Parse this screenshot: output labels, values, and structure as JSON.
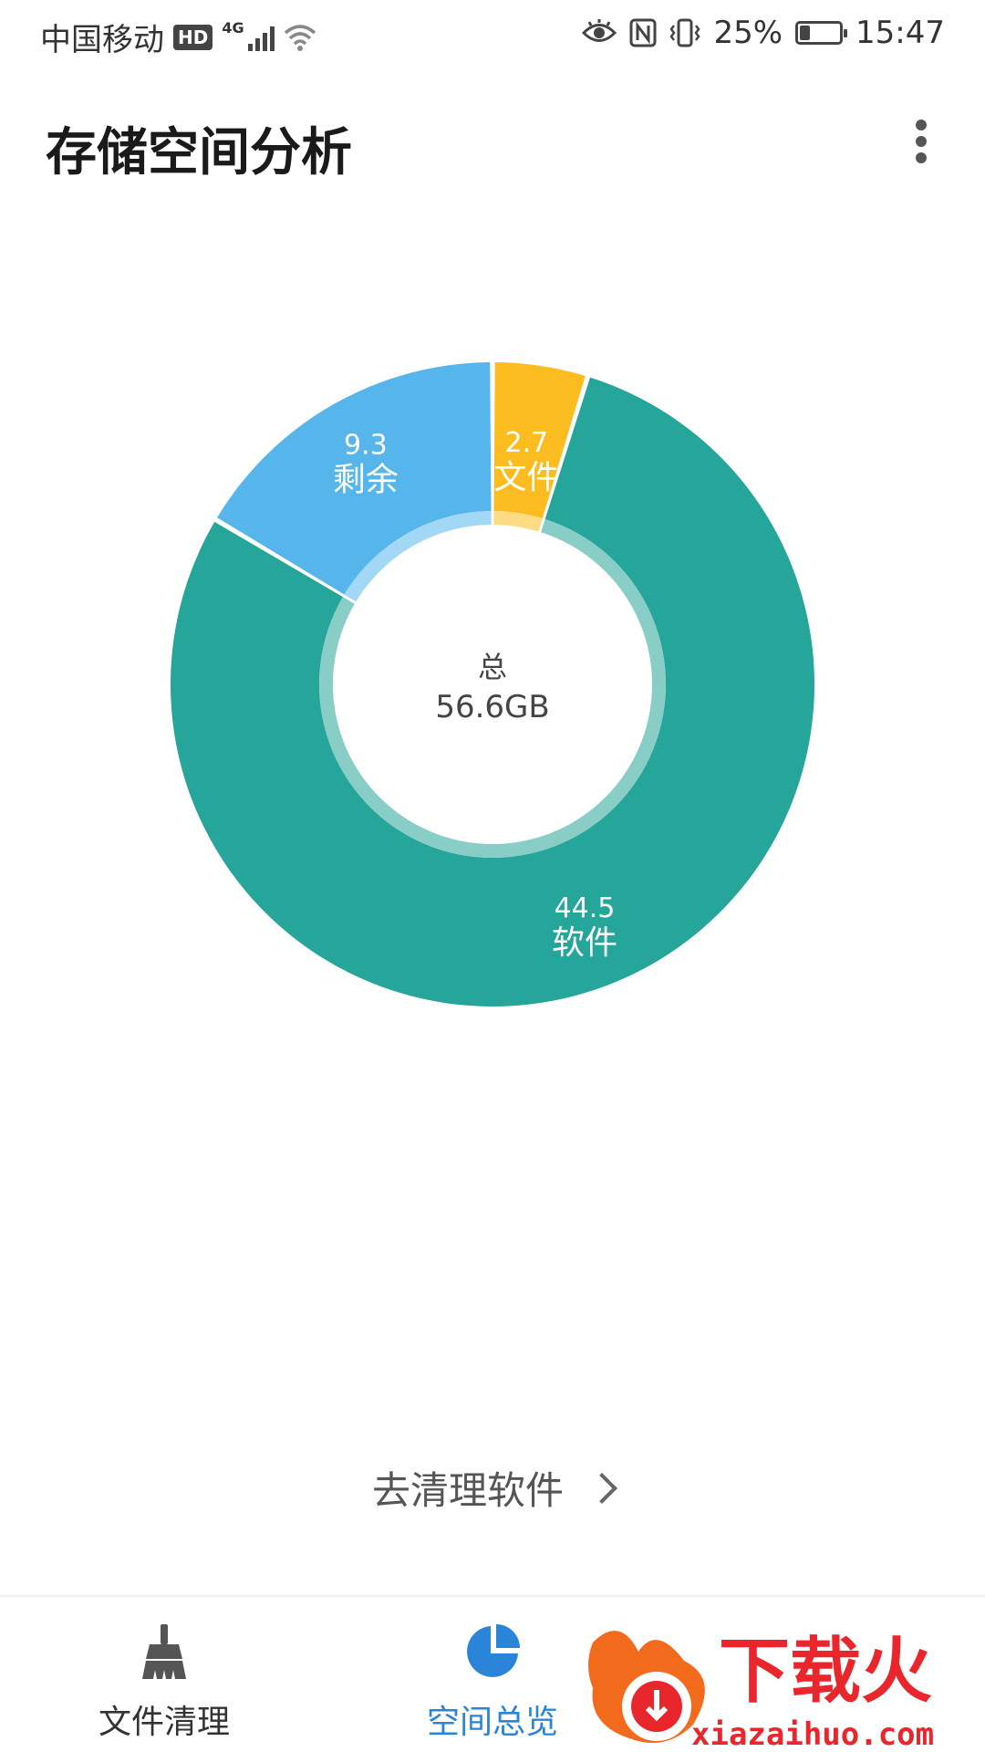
{
  "status_bar": {
    "carrier": "中国移动",
    "hd": "HD",
    "network": "4G",
    "battery_percent": "25%",
    "battery_level": 0.25,
    "time": "15:47"
  },
  "header": {
    "title": "存储空间分析",
    "more_icon": "more-vertical-icon"
  },
  "chart_data": {
    "type": "pie",
    "style": "donut",
    "center_label": "总",
    "center_value": "56.6GB",
    "segments": [
      {
        "label": "文件",
        "value_label": "2.7",
        "value": 2.7,
        "color": "#FBBC20"
      },
      {
        "label": "软件",
        "value_label": "44.5",
        "value": 44.5,
        "color": "#26A69A"
      },
      {
        "label": "剩余",
        "value_label": "9.3",
        "value": 9.3,
        "color": "#56B6EC"
      }
    ]
  },
  "action": {
    "label": "去清理软件"
  },
  "bottom_nav": {
    "items": [
      {
        "label": "文件清理",
        "icon": "broom-icon",
        "active": false
      },
      {
        "label": "空间总览",
        "icon": "pie-chart-icon",
        "active": true
      }
    ],
    "active_color": "#2A84D8"
  },
  "watermark": {
    "brand": "下载火",
    "url": "xiazaihuo.com"
  }
}
